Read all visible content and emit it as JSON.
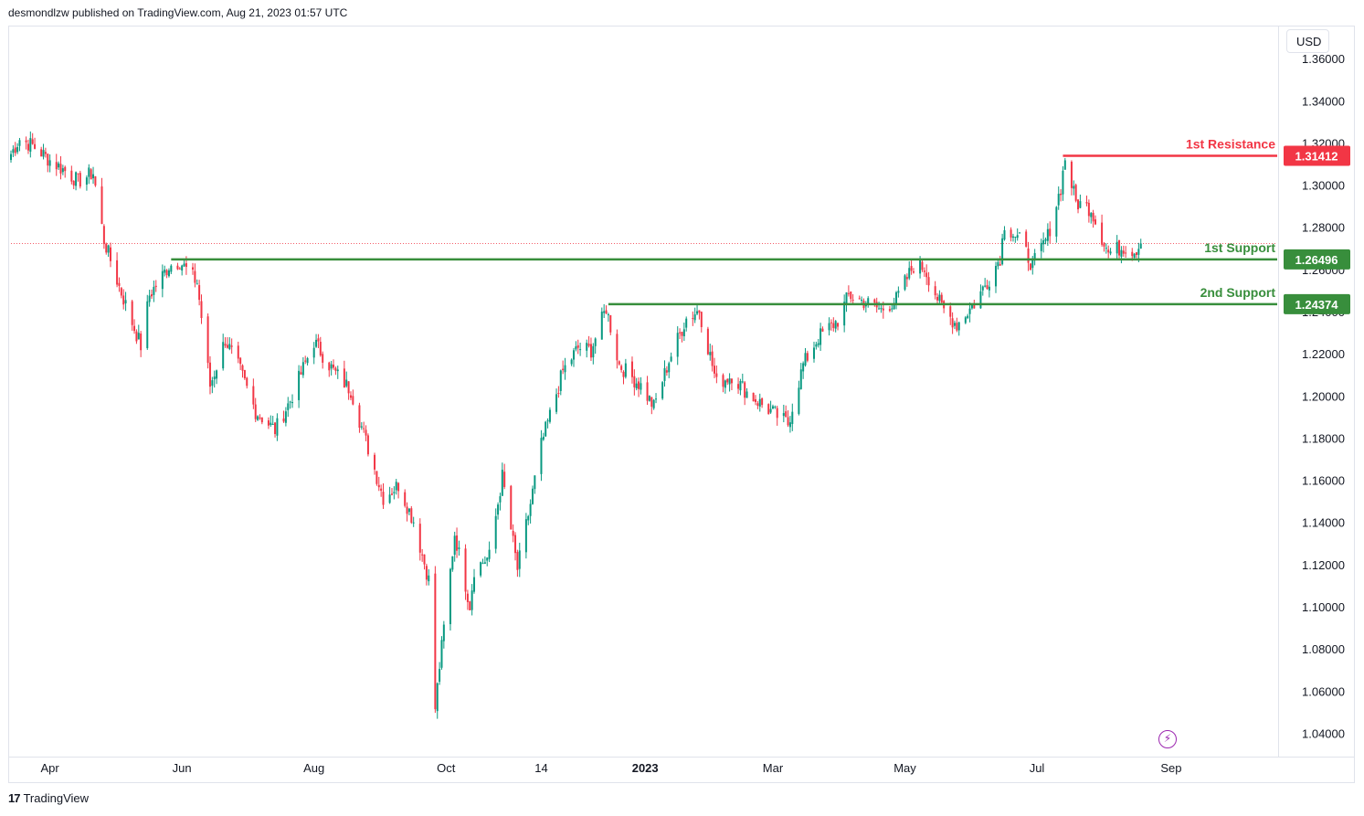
{
  "header": {
    "text": "desmondlzw published on TradingView.com, Aug 21, 2023 01:57 UTC"
  },
  "currency_button": "USD",
  "footer": {
    "logo_text": "TradingView"
  },
  "icons": {
    "footer_logo": "tradingview-logo-icon",
    "snapshot": "lightning-icon"
  },
  "colors": {
    "up": "#089981",
    "down": "#f23645",
    "resistance": "#f23645",
    "support": "#388e3c",
    "last_price": "#f23645"
  },
  "chart_data": {
    "type": "candlestick",
    "symbol_quote": "USD",
    "ylim": [
      1.03,
      1.375
    ],
    "y_ticks": [
      "1.36000",
      "1.34000",
      "1.32000",
      "1.30000",
      "1.28000",
      "1.26000",
      "1.24000",
      "1.22000",
      "1.20000",
      "1.18000",
      "1.16000",
      "1.14000",
      "1.12000",
      "1.10000",
      "1.08000",
      "1.06000",
      "1.04000"
    ],
    "x_ticks": [
      {
        "label": "Apr",
        "date": "2022-04-01"
      },
      {
        "label": "Jun",
        "date": "2022-06-01"
      },
      {
        "label": "Aug",
        "date": "2022-08-01"
      },
      {
        "label": "Oct",
        "date": "2022-10-01"
      },
      {
        "label": "14",
        "date": "2022-11-14"
      },
      {
        "label": "2023",
        "date": "2023-01-01",
        "bold": true
      },
      {
        "label": "Mar",
        "date": "2023-03-01"
      },
      {
        "label": "May",
        "date": "2023-05-01"
      },
      {
        "label": "Jul",
        "date": "2023-07-01"
      },
      {
        "label": "Sep",
        "date": "2023-09-01"
      }
    ],
    "x_range": [
      "2022-03-14",
      "2023-10-20"
    ],
    "last_price": 1.2725,
    "price_path": [
      [
        "2022-03-14",
        1.315
      ],
      [
        "2022-03-18",
        1.322
      ],
      [
        "2022-03-24",
        1.319
      ],
      [
        "2022-04-01",
        1.312
      ],
      [
        "2022-04-08",
        1.307
      ],
      [
        "2022-04-14",
        1.302
      ],
      [
        "2022-04-21",
        1.306
      ],
      [
        "2022-04-26",
        1.274
      ],
      [
        "2022-05-03",
        1.252
      ],
      [
        "2022-05-09",
        1.235
      ],
      [
        "2022-05-13",
        1.224
      ],
      [
        "2022-05-17",
        1.248
      ],
      [
        "2022-05-26",
        1.262
      ],
      [
        "2022-05-31",
        1.264
      ],
      [
        "2022-06-08",
        1.254
      ],
      [
        "2022-06-14",
        1.205
      ],
      [
        "2022-06-21",
        1.227
      ],
      [
        "2022-06-28",
        1.212
      ],
      [
        "2022-07-05",
        1.193
      ],
      [
        "2022-07-14",
        1.184
      ],
      [
        "2022-07-21",
        1.198
      ],
      [
        "2022-08-01",
        1.226
      ],
      [
        "2022-08-10",
        1.212
      ],
      [
        "2022-08-18",
        1.203
      ],
      [
        "2022-08-24",
        1.182
      ],
      [
        "2022-09-02",
        1.152
      ],
      [
        "2022-09-09",
        1.158
      ],
      [
        "2022-09-16",
        1.141
      ],
      [
        "2022-09-23",
        1.113
      ],
      [
        "2022-09-26",
        1.052
      ],
      [
        "2022-09-28",
        1.072
      ],
      [
        "2022-10-05",
        1.135
      ],
      [
        "2022-10-12",
        1.101
      ],
      [
        "2022-10-14",
        1.118
      ],
      [
        "2022-10-21",
        1.124
      ],
      [
        "2022-10-27",
        1.162
      ],
      [
        "2022-11-03",
        1.118
      ],
      [
        "2022-11-09",
        1.149
      ],
      [
        "2022-11-14",
        1.177
      ],
      [
        "2022-11-24",
        1.212
      ],
      [
        "2022-12-01",
        1.223
      ],
      [
        "2022-12-07",
        1.222
      ],
      [
        "2022-12-14",
        1.242
      ],
      [
        "2022-12-20",
        1.215
      ],
      [
        "2022-12-30",
        1.205
      ],
      [
        "2023-01-05",
        1.195
      ],
      [
        "2023-01-12",
        1.217
      ],
      [
        "2023-01-20",
        1.237
      ],
      [
        "2023-01-26",
        1.241
      ],
      [
        "2023-02-03",
        1.206
      ],
      [
        "2023-02-10",
        1.21
      ],
      [
        "2023-02-17",
        1.202
      ],
      [
        "2023-02-24",
        1.196
      ],
      [
        "2023-03-08",
        1.187
      ],
      [
        "2023-03-15",
        1.215
      ],
      [
        "2023-03-22",
        1.228
      ],
      [
        "2023-03-31",
        1.236
      ],
      [
        "2023-04-05",
        1.248
      ],
      [
        "2023-04-14",
        1.244
      ],
      [
        "2023-04-20",
        1.241
      ],
      [
        "2023-04-27",
        1.246
      ],
      [
        "2023-05-05",
        1.262
      ],
      [
        "2023-05-10",
        1.261
      ],
      [
        "2023-05-18",
        1.242
      ],
      [
        "2023-05-25",
        1.234
      ],
      [
        "2023-06-02",
        1.244
      ],
      [
        "2023-06-09",
        1.256
      ],
      [
        "2023-06-14",
        1.266
      ],
      [
        "2023-06-16",
        1.282
      ],
      [
        "2023-06-23",
        1.274
      ],
      [
        "2023-06-29",
        1.262
      ],
      [
        "2023-07-06",
        1.276
      ],
      [
        "2023-07-12",
        1.299
      ],
      [
        "2023-07-14",
        1.313
      ],
      [
        "2023-07-19",
        1.292
      ],
      [
        "2023-07-26",
        1.289
      ],
      [
        "2023-07-28",
        1.283
      ],
      [
        "2023-08-03",
        1.268
      ],
      [
        "2023-08-10",
        1.271
      ],
      [
        "2023-08-15",
        1.269
      ],
      [
        "2023-08-18",
        1.2725
      ]
    ],
    "levels": [
      {
        "label": "1st Resistance",
        "price_text": "1.31412",
        "value": 1.31412,
        "start": "2023-07-13",
        "color": "#f23645"
      },
      {
        "label": "1st Support",
        "price_text": "1.26496",
        "value": 1.26496,
        "start": "2022-05-27",
        "color": "#388e3c"
      },
      {
        "label": "2nd Support",
        "price_text": "1.24374",
        "value": 1.24374,
        "start": "2022-12-15",
        "color": "#388e3c"
      }
    ]
  }
}
